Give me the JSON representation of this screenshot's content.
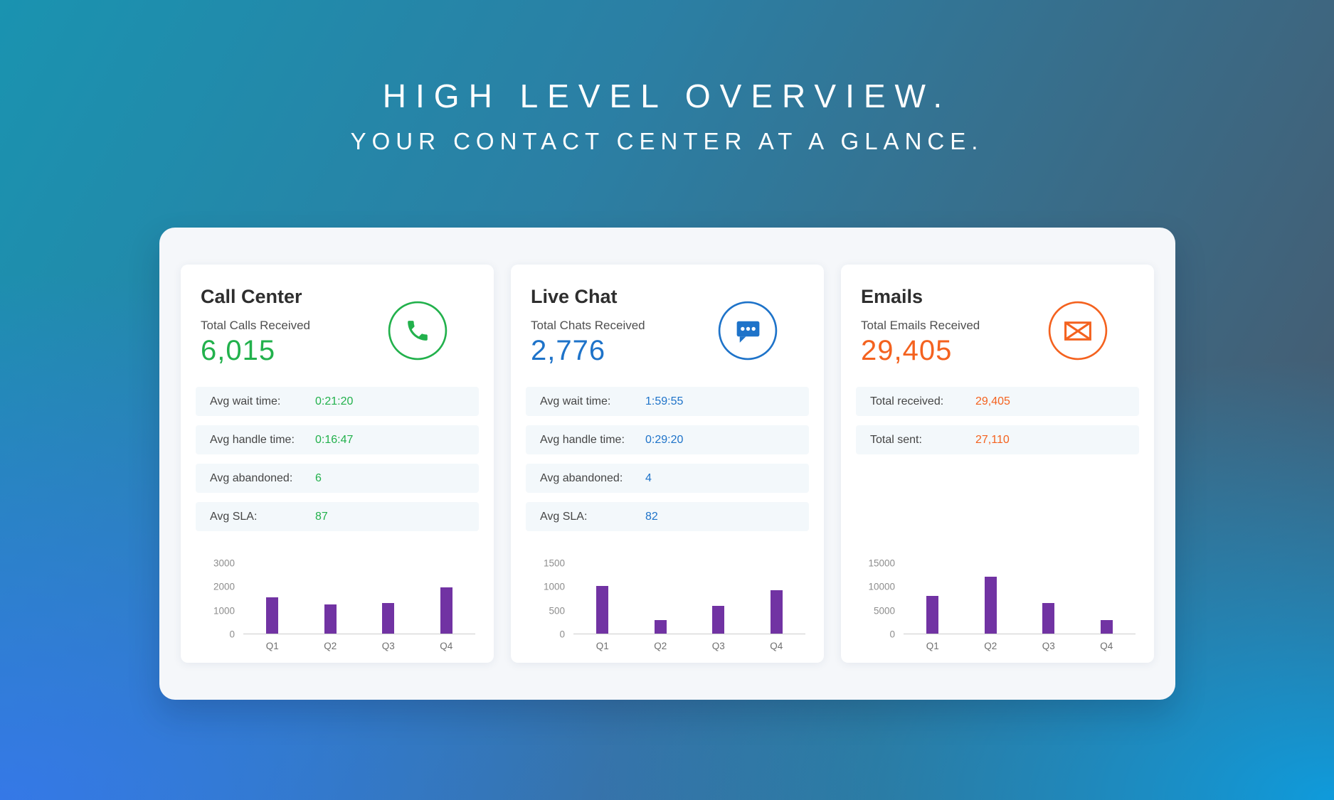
{
  "page": {
    "title": "HIGH LEVEL OVERVIEW.",
    "subtitle": "YOUR CONTACT CENTER AT A GLANCE."
  },
  "cards": [
    {
      "title": "Call Center",
      "metric_label": "Total Calls Received",
      "metric_value": "6,015",
      "accent_color": "#22B14C",
      "icon": "phone-icon",
      "stats": [
        {
          "label": "Avg wait time:",
          "value": "0:21:20"
        },
        {
          "label": "Avg handle time:",
          "value": "0:16:47"
        },
        {
          "label": "Avg abandoned:",
          "value": "6"
        },
        {
          "label": "Avg SLA:",
          "value": "87"
        }
      ]
    },
    {
      "title": "Live Chat",
      "metric_label": "Total Chats Received",
      "metric_value": "2,776",
      "accent_color": "#1E73C9",
      "icon": "chat-bubble-icon",
      "stats": [
        {
          "label": "Avg wait time:",
          "value": "1:59:55"
        },
        {
          "label": "Avg handle time:",
          "value": "0:29:20"
        },
        {
          "label": "Avg abandoned:",
          "value": "4"
        },
        {
          "label": "Avg SLA:",
          "value": "82"
        }
      ]
    },
    {
      "title": "Emails",
      "metric_label": "Total Emails Received",
      "metric_value": "29,405",
      "accent_color": "#F4621F",
      "icon": "envelope-icon",
      "stats": [
        {
          "label": "Total received:",
          "value": "29,405"
        },
        {
          "label": "Total sent:",
          "value": "27,110"
        }
      ]
    }
  ],
  "chart_data": [
    {
      "type": "bar",
      "card": "Call Center",
      "categories": [
        "Q1",
        "Q2",
        "Q3",
        "Q4"
      ],
      "values": [
        1540,
        1240,
        1290,
        1945
      ],
      "ticks": [
        "3000",
        "2000",
        "1000",
        "0"
      ],
      "ylim": [
        0,
        3000
      ],
      "bar_color": "#7133A3",
      "grid": false,
      "legend": false
    },
    {
      "type": "bar",
      "card": "Live Chat",
      "categories": [
        "Q1",
        "Q2",
        "Q3",
        "Q4"
      ],
      "values": [
        1000,
        285,
        580,
        911
      ],
      "ticks": [
        "1500",
        "1000",
        "500",
        "0"
      ],
      "ylim": [
        0,
        1500
      ],
      "bar_color": "#7133A3",
      "grid": false,
      "legend": false
    },
    {
      "type": "bar",
      "card": "Emails",
      "categories": [
        "Q1",
        "Q2",
        "Q3",
        "Q4"
      ],
      "values": [
        8000,
        12000,
        6500,
        2905
      ],
      "ticks": [
        "15000",
        "10000",
        "5000",
        "0"
      ],
      "ylim": [
        0,
        15000
      ],
      "bar_color": "#7133A3",
      "grid": false,
      "legend": false
    }
  ]
}
